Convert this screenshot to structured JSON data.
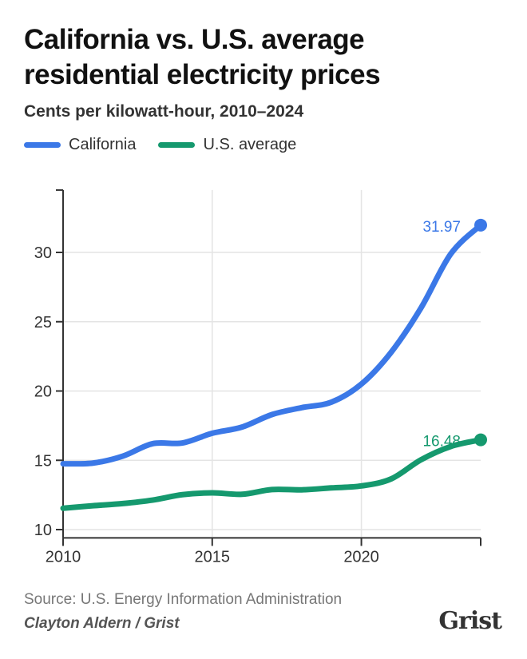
{
  "chart_data": {
    "type": "line",
    "title": "California vs. U.S. average residential electricity prices",
    "subtitle": "Cents per kilowatt-hour, 2010–2024",
    "xlabel": "",
    "ylabel": "",
    "x": [
      2010,
      2011,
      2012,
      2013,
      2014,
      2015,
      2016,
      2017,
      2018,
      2019,
      2020,
      2021,
      2022,
      2023,
      2024
    ],
    "xticks": [
      "2010",
      "2015",
      "2020"
    ],
    "yticks": [
      "10",
      "15",
      "20",
      "25",
      "30"
    ],
    "ylim": [
      9.4,
      34.5
    ],
    "xlim": [
      2010,
      2024
    ],
    "grid": true,
    "legend": "top-left",
    "series": [
      {
        "name": "California",
        "color": "#3b78e7",
        "values": [
          14.75,
          14.8,
          15.3,
          16.2,
          16.25,
          16.95,
          17.4,
          18.3,
          18.8,
          19.2,
          20.5,
          22.8,
          26.0,
          29.9,
          31.97
        ],
        "end_label": "31.97"
      },
      {
        "name": "U.S. average",
        "color": "#15996e",
        "values": [
          11.54,
          11.72,
          11.88,
          12.13,
          12.52,
          12.65,
          12.55,
          12.89,
          12.87,
          13.01,
          13.15,
          13.66,
          15.04,
          16.0,
          16.48
        ],
        "end_label": "16.48"
      }
    ]
  },
  "footer": {
    "source": "Source: U.S. Energy Information Administration",
    "credit": "Clayton Aldern / Grist",
    "logo": "Grist"
  }
}
